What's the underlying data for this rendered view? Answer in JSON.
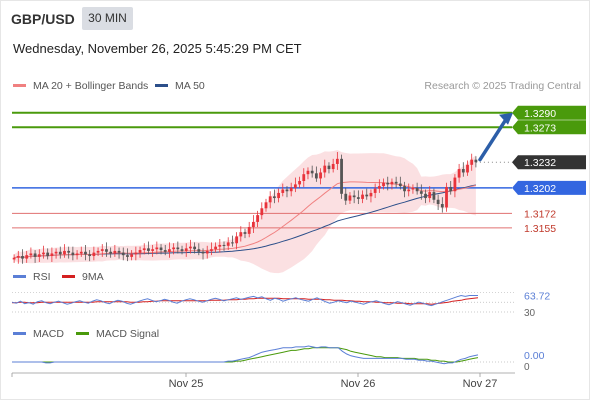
{
  "header": {
    "symbol": "GBP/USD",
    "timeframe": "30 MIN",
    "datetime": "Wednesday, November 26, 2025 5:45:29 PM CET"
  },
  "legend": {
    "ma20": "MA 20 + Bollinger Bands",
    "ma50": "MA 50",
    "rsi": "RSI",
    "rsi_ma": "9MA",
    "macd": "MACD",
    "macd_signal": "MACD Signal"
  },
  "credit": "Research © 2025 Trading Central",
  "colors": {
    "bull": "#e8333b",
    "bear": "#555555",
    "ma20": "#f08080",
    "ma50": "#2c4f8a",
    "band": "#fadadd",
    "target": "#4a9a0c",
    "pivot": "#3366e0",
    "support": "#e07070",
    "arrow": "#2c5ea8",
    "rsi": "#5b7fd6",
    "rsi_ma": "#d42020",
    "macd": "#5b7fd6",
    "macd_signal": "#4a9a0c"
  },
  "chart_data": [
    {
      "type": "candlestick",
      "price_range": [
        1.3115,
        1.3305
      ],
      "current_price": 1.3232,
      "levels": [
        {
          "value": 1.329,
          "label": "1.3290",
          "kind": "target"
        },
        {
          "value": 1.3273,
          "label": "1.3273",
          "kind": "target"
        },
        {
          "value": 1.3232,
          "label": "1.3232",
          "kind": "current"
        },
        {
          "value": 1.3202,
          "label": "1.3202",
          "kind": "pivot"
        },
        {
          "value": 1.3172,
          "label": "1.3172",
          "kind": "support"
        },
        {
          "value": 1.3155,
          "label": "1.3155",
          "kind": "support"
        }
      ],
      "x_ticks": [
        "Nov 25",
        "Nov 26",
        "Nov 27"
      ],
      "closes": [
        1.312,
        1.3122,
        1.3119,
        1.3123,
        1.3125,
        1.3121,
        1.3124,
        1.3126,
        1.3122,
        1.3125,
        1.3127,
        1.3124,
        1.3128,
        1.3126,
        1.3123,
        1.3125,
        1.3127,
        1.3124,
        1.3122,
        1.3126,
        1.3128,
        1.313,
        1.3127,
        1.3125,
        1.3128,
        1.3126,
        1.3123,
        1.3121,
        1.3124,
        1.3126,
        1.3129,
        1.3131,
        1.3128,
        1.313,
        1.3132,
        1.3129,
        1.3127,
        1.313,
        1.3132,
        1.313,
        1.3128,
        1.3131,
        1.3133,
        1.313,
        1.3127,
        1.3125,
        1.3128,
        1.313,
        1.3133,
        1.3135,
        1.3134,
        1.3138,
        1.3137,
        1.3145,
        1.315,
        1.3148,
        1.3156,
        1.3162,
        1.317,
        1.3178,
        1.3185,
        1.3192,
        1.319,
        1.3196,
        1.32,
        1.3198,
        1.3202,
        1.3206,
        1.321,
        1.3218,
        1.3222,
        1.3219,
        1.3213,
        1.322,
        1.3228,
        1.3224,
        1.323,
        1.3236,
        1.3195,
        1.3187,
        1.3193,
        1.3191,
        1.3189,
        1.3194,
        1.3192,
        1.3196,
        1.3201,
        1.3204,
        1.3208,
        1.3206,
        1.3209,
        1.3207,
        1.3204,
        1.3198,
        1.32,
        1.3202,
        1.3198,
        1.3195,
        1.319,
        1.3197,
        1.3188,
        1.3183,
        1.3179,
        1.3203,
        1.3198,
        1.3214,
        1.3224,
        1.322,
        1.3229,
        1.3235,
        1.3232
      ]
    },
    {
      "type": "line",
      "title": "RSI",
      "current_value": 63.72,
      "value_label": "63.72",
      "y_ticks": [
        30
      ],
      "series": [
        {
          "name": "RSI",
          "values": [
            50,
            48,
            52,
            47,
            49,
            46,
            51,
            53,
            49,
            47,
            50,
            52,
            49,
            46,
            48,
            51,
            53,
            50,
            48,
            52,
            55,
            53,
            49,
            47,
            51,
            54,
            52,
            48,
            46,
            49,
            52,
            55,
            57,
            54,
            51,
            53,
            56,
            54,
            50,
            48,
            52,
            55,
            57,
            55,
            52,
            50,
            53,
            56,
            58,
            56,
            53,
            55,
            57,
            59,
            56,
            58,
            60,
            62,
            59,
            61,
            57,
            54,
            58,
            56,
            52,
            55,
            57,
            59,
            56,
            54,
            52,
            56,
            59,
            55,
            51,
            48,
            50,
            53,
            51,
            49,
            52,
            50,
            48,
            46,
            49,
            51,
            53,
            50,
            47,
            45,
            48,
            51,
            49,
            46,
            44,
            47,
            50,
            48,
            45,
            43,
            46,
            49,
            52,
            55,
            58,
            61,
            63.72,
            62,
            63.72,
            63.72,
            63.72
          ]
        },
        {
          "name": "9MA",
          "values": [
            49,
            49,
            50,
            50,
            49,
            49,
            49,
            50,
            50,
            50,
            50,
            50,
            50,
            50,
            50,
            50,
            50,
            50,
            50,
            50,
            51,
            51,
            51,
            51,
            51,
            51,
            51,
            51,
            50,
            50,
            50,
            51,
            51,
            52,
            52,
            53,
            53,
            53,
            53,
            53,
            53,
            53,
            53,
            53,
            53,
            53,
            53,
            54,
            54,
            54,
            54,
            55,
            55,
            55,
            56,
            56,
            57,
            57,
            58,
            58,
            58,
            58,
            58,
            58,
            57,
            57,
            57,
            57,
            57,
            57,
            56,
            56,
            56,
            56,
            55,
            55,
            54,
            54,
            54,
            53,
            53,
            52,
            52,
            51,
            51,
            51,
            50,
            50,
            49,
            49,
            49,
            48,
            48,
            48,
            47,
            47,
            47,
            47,
            47,
            46,
            47,
            48,
            49,
            50,
            52,
            53,
            54,
            56,
            57,
            58,
            59
          ]
        }
      ]
    },
    {
      "type": "line",
      "title": "MACD",
      "current_value": 0.0,
      "value_label": "0.00",
      "y_ticks": [
        0
      ],
      "series": [
        {
          "name": "MACD",
          "values": [
            0,
            0,
            0,
            0,
            0,
            0,
            0,
            0,
            -0.0001,
            -0.0001,
            0,
            0,
            0,
            0,
            0,
            0,
            0,
            0,
            0,
            0,
            0,
            0,
            0,
            0,
            0,
            0,
            0,
            0,
            0,
            0,
            0,
            0,
            0,
            0,
            0,
            0,
            0,
            0,
            0,
            0,
            0,
            0,
            0,
            0,
            0,
            0,
            0,
            0,
            0,
            0,
            0,
            0.0001,
            0.0001,
            0.0002,
            0.0003,
            0.0004,
            0.0005,
            0.0007,
            0.0009,
            0.0011,
            0.0012,
            0.0013,
            0.0014,
            0.0015,
            0.0016,
            0.0016,
            0.0016,
            0.0017,
            0.0017,
            0.0017,
            0.0018,
            0.0017,
            0.0016,
            0.0017,
            0.0017,
            0.0016,
            0.0016,
            0.0016,
            0.0012,
            0.0009,
            0.0007,
            0.0006,
            0.0005,
            0.0004,
            0.0004,
            0.0004,
            0.0004,
            0.0004,
            0.0004,
            0.0004,
            0.0004,
            0.0004,
            0.0004,
            0.0003,
            0.0003,
            0.0003,
            0.0002,
            0.0002,
            0.0001,
            0.0001,
            0,
            -0.0001,
            -0.0002,
            -0.0001,
            -0.0001,
            0.0001,
            0.0003,
            0.0004,
            0.0006,
            0.0007,
            0.0008
          ]
        },
        {
          "name": "MACD Signal",
          "values": [
            0,
            0,
            0,
            0,
            0,
            0,
            0,
            0,
            0,
            0,
            0,
            0,
            0,
            0,
            0,
            0,
            0,
            0,
            0,
            0,
            0,
            0,
            0,
            0,
            0,
            0,
            0,
            0,
            0,
            0,
            0,
            0,
            0,
            0,
            0,
            0,
            0,
            0,
            0,
            0,
            0,
            0,
            0,
            0,
            0,
            0,
            0,
            0,
            0,
            0,
            0,
            0,
            0,
            0.0001,
            0.0001,
            0.0002,
            0.0003,
            0.0004,
            0.0005,
            0.0006,
            0.0007,
            0.0008,
            0.0009,
            0.001,
            0.0011,
            0.0012,
            0.0013,
            0.0013,
            0.0014,
            0.0015,
            0.0015,
            0.0016,
            0.0016,
            0.0016,
            0.0016,
            0.0016,
            0.0016,
            0.0016,
            0.0015,
            0.0014,
            0.0012,
            0.0011,
            0.001,
            0.0009,
            0.0008,
            0.0007,
            0.0006,
            0.0006,
            0.0005,
            0.0005,
            0.0005,
            0.0005,
            0.0004,
            0.0004,
            0.0004,
            0.0004,
            0.0003,
            0.0003,
            0.0003,
            0.0002,
            0.0002,
            0.0001,
            0.0001,
            0,
            0,
            0,
            0.0001,
            0.0002,
            0.0003,
            0.0004,
            0.0005
          ]
        }
      ]
    }
  ]
}
